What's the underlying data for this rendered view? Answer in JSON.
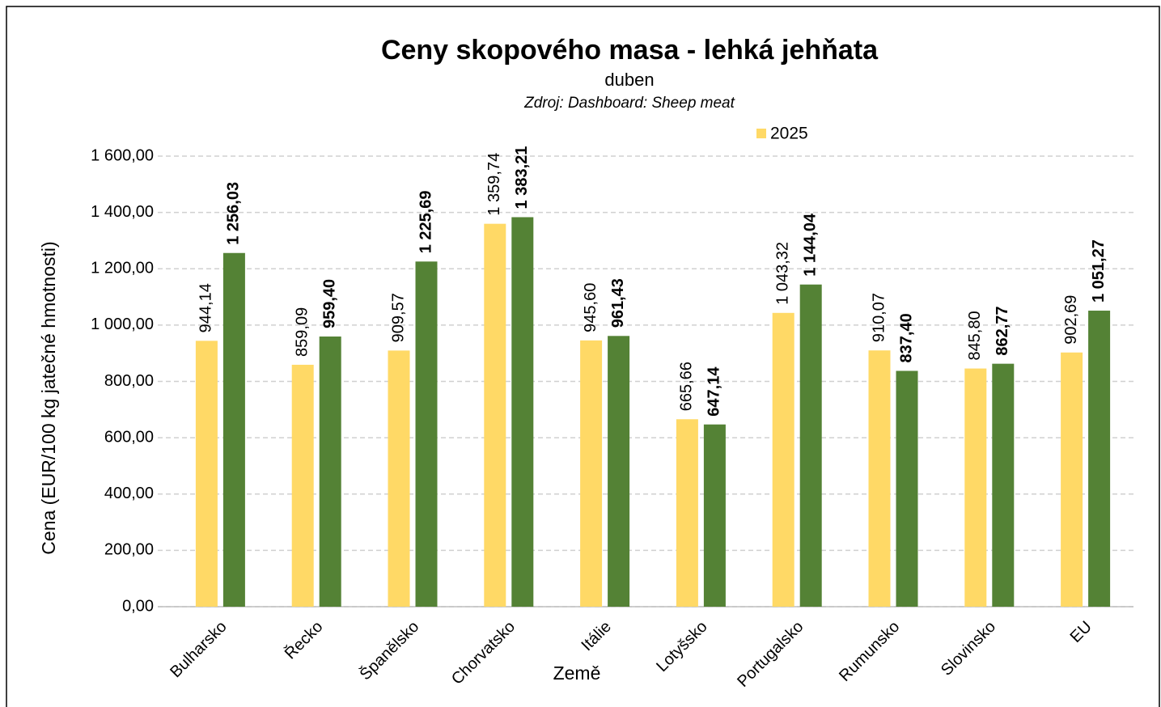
{
  "chart_data": {
    "type": "bar",
    "title": "Ceny skopového masa - lehká jehňata",
    "subtitle": "duben",
    "source": "Zdroj: Dashboard: Sheep meat",
    "x_label": "Země",
    "y_label": "Cena (EUR/100 kg jatečné hmotnosti)",
    "categories": [
      "Bulharsko",
      "Řecko",
      "Španělsko",
      "Chorvatsko",
      "Itálie",
      "Lotyšsko",
      "Portugalsko",
      "Rumunsko",
      "Slovinsko",
      "EU"
    ],
    "series": [
      {
        "name": "2025",
        "color": "#ffd966",
        "values": [
          944.14,
          859.09,
          909.57,
          1359.74,
          945.6,
          665.66,
          1043.32,
          910.07,
          845.8,
          902.69
        ],
        "value_labels": [
          "944,14",
          "859,09",
          "909,57",
          "1 359,74",
          "945,60",
          "665,66",
          "1 043,32",
          "910,07",
          "845,80",
          "902,69"
        ]
      },
      {
        "color": "#548235",
        "values": [
          1256.03,
          959.4,
          1225.69,
          1383.21,
          961.43,
          647.14,
          1144.04,
          837.4,
          862.77,
          1051.27
        ],
        "value_labels": [
          "1 256,03",
          "959,40",
          "1 225,69",
          "1 383,21",
          "961,43",
          "647,14",
          "1 144,04",
          "837,40",
          "862,77",
          "1 051,27"
        ]
      }
    ],
    "ylim": [
      0,
      1600
    ],
    "yticks": [
      {
        "value": 0,
        "label": "0,00"
      },
      {
        "value": 200,
        "label": "200,00"
      },
      {
        "value": 400,
        "label": "400,00"
      },
      {
        "value": 600,
        "label": "600,00"
      },
      {
        "value": 800,
        "label": "800,00"
      },
      {
        "value": 1000,
        "label": "1 000,00"
      },
      {
        "value": 1200,
        "label": "1 200,00"
      },
      {
        "value": 1400,
        "label": "1 400,00"
      },
      {
        "value": 1600,
        "label": "1 600,00"
      }
    ],
    "grid": true
  }
}
